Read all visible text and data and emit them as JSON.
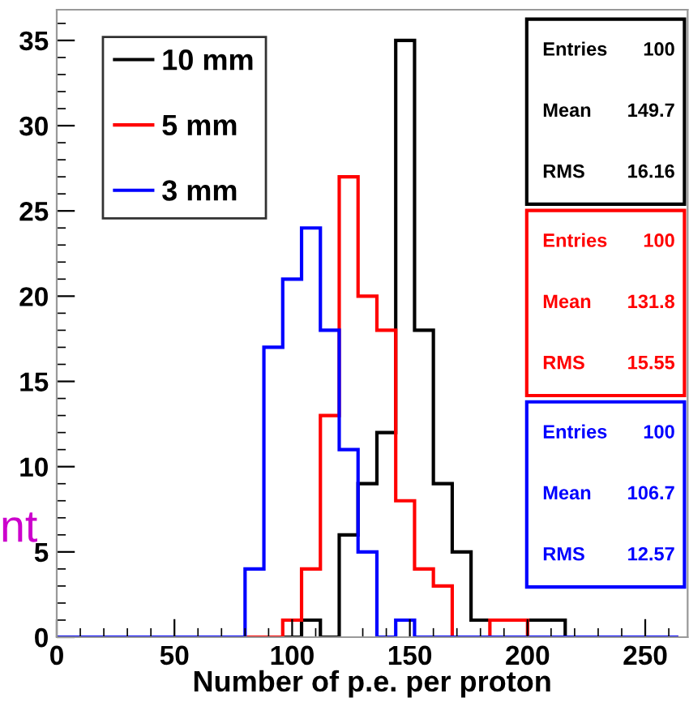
{
  "chart_data": {
    "type": "histogram",
    "xlabel": "Number of p.e. per proton",
    "bins": [
      0,
      8,
      16,
      24,
      32,
      40,
      48,
      56,
      64,
      72,
      80,
      88,
      96,
      104,
      112,
      120,
      128,
      136,
      144,
      152,
      160,
      168,
      176,
      184,
      192,
      200,
      208,
      216,
      224,
      232,
      240,
      248,
      256,
      264
    ],
    "series": [
      {
        "name": "10 mm",
        "color": "#000000",
        "values": [
          0,
          0,
          0,
          0,
          0,
          0,
          0,
          0,
          0,
          0,
          0,
          0,
          0,
          1,
          0,
          6,
          9,
          12,
          35,
          18,
          9,
          5,
          1,
          1,
          1,
          1,
          1,
          0,
          0,
          0,
          0,
          0,
          0
        ]
      },
      {
        "name": "5 mm",
        "color": "#ff0000",
        "values": [
          0,
          0,
          0,
          0,
          0,
          0,
          0,
          0,
          0,
          0,
          0,
          0,
          1,
          4,
          13,
          27,
          20,
          18,
          8,
          4,
          3,
          0,
          0,
          1,
          1,
          0,
          0,
          0,
          0,
          0,
          0,
          0,
          0
        ]
      },
      {
        "name": "3 mm",
        "color": "#0000ff",
        "values": [
          0,
          0,
          0,
          0,
          0,
          0,
          0,
          0,
          0,
          0,
          4,
          17,
          21,
          24,
          18,
          11,
          5,
          0,
          1,
          0,
          0,
          0,
          0,
          0,
          0,
          0,
          0,
          0,
          0,
          0,
          0,
          0,
          0
        ]
      }
    ],
    "xlim": [
      0,
      268
    ],
    "ylim": [
      0,
      36.8
    ],
    "xticks": [
      0,
      50,
      100,
      150,
      200,
      250
    ],
    "yticks": [
      0,
      5,
      10,
      15,
      20,
      25,
      30,
      35
    ],
    "legend": "top left",
    "grid": false,
    "annotations": [
      "Entries",
      "100",
      "Mean",
      "149.7",
      "RMS",
      "16.16",
      "Entries",
      "100",
      "Mean",
      "131.8",
      "RMS",
      "15.55",
      "Entries",
      "100",
      "Mean",
      "106.7",
      "RMS",
      "12.57",
      "nt"
    ]
  }
}
